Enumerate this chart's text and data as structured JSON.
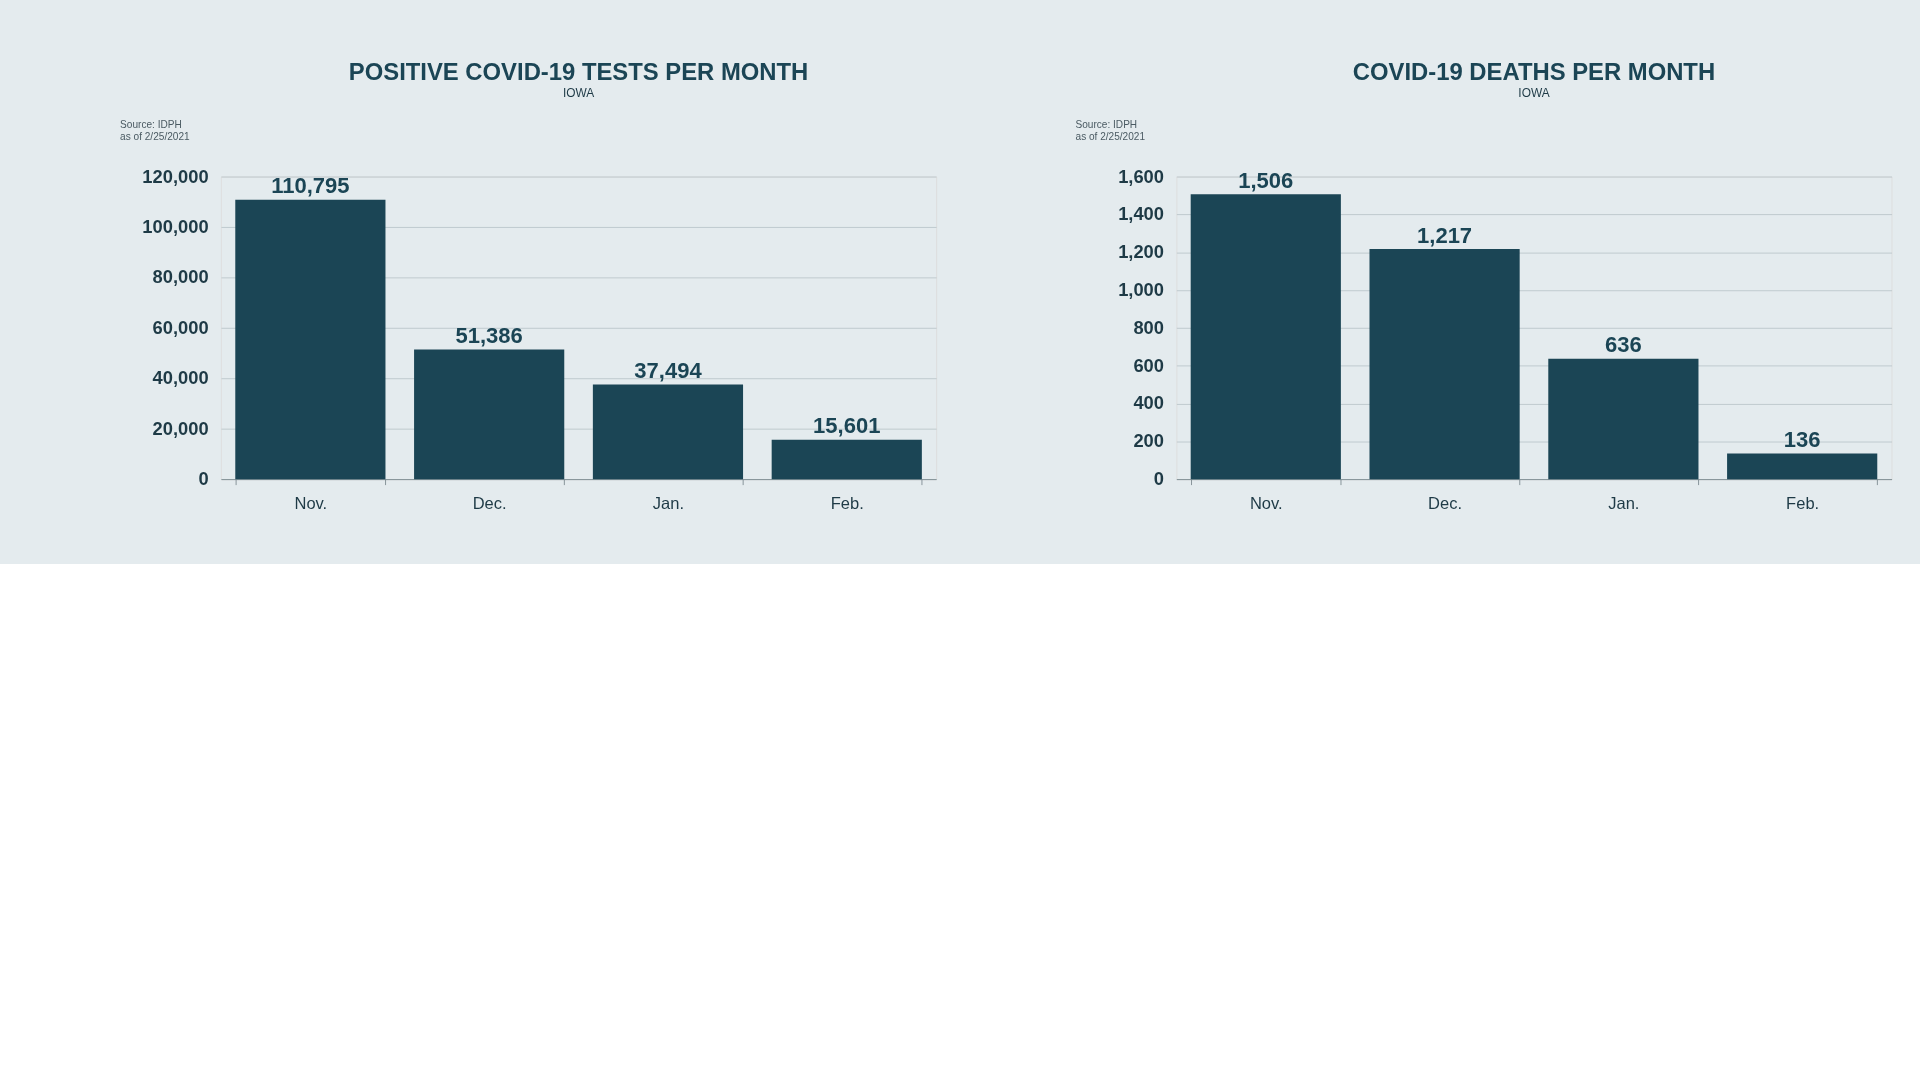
{
  "chart_data": [
    {
      "type": "bar",
      "title": "POSITIVE COVID-19 TESTS PER MONTH",
      "subtitle": "IOWA",
      "annotations": [
        "Source: IDPH",
        "as of 2/25/2021"
      ],
      "categories": [
        "Nov.",
        "Dec.",
        "Jan.",
        "Feb."
      ],
      "values": [
        110795,
        51386,
        37494,
        15601
      ],
      "value_labels": [
        "110,795",
        "51,386",
        "37,494",
        "15,601"
      ],
      "color": "#1b4555",
      "ylim": [
        0,
        120000
      ],
      "yticks": [
        0,
        {
          "value": 20000,
          "label": "20,000"
        },
        {
          "value": 40000,
          "label": "40,000"
        },
        {
          "value": 60000,
          "label": "60,000"
        },
        {
          "value": 80000,
          "label": "80,000"
        },
        {
          "value": 100000,
          "label": "100,000"
        },
        {
          "value": 120000,
          "label": "120,000"
        }
      ],
      "grid": "y"
    },
    {
      "type": "bar",
      "title": "COVID-19 DEATHS PER MONTH",
      "subtitle": "IOWA",
      "annotations": [
        "Source: IDPH",
        "as of 2/25/2021"
      ],
      "categories": [
        "Nov.",
        "Dec.",
        "Jan.",
        "Feb."
      ],
      "values": [
        1506,
        1217,
        636,
        136
      ],
      "value_labels": [
        "1,506",
        "1,217",
        "636",
        "136"
      ],
      "color": "#1b4555",
      "ylim": [
        0,
        1600
      ],
      "yticks": [
        0,
        200,
        400,
        600,
        800,
        {
          "value": 1000,
          "label": "1,000"
        },
        {
          "value": 1200,
          "label": "1,200"
        },
        {
          "value": 1400,
          "label": "1,400"
        },
        {
          "value": 1600,
          "label": "1,600"
        }
      ],
      "grid": "y"
    }
  ]
}
